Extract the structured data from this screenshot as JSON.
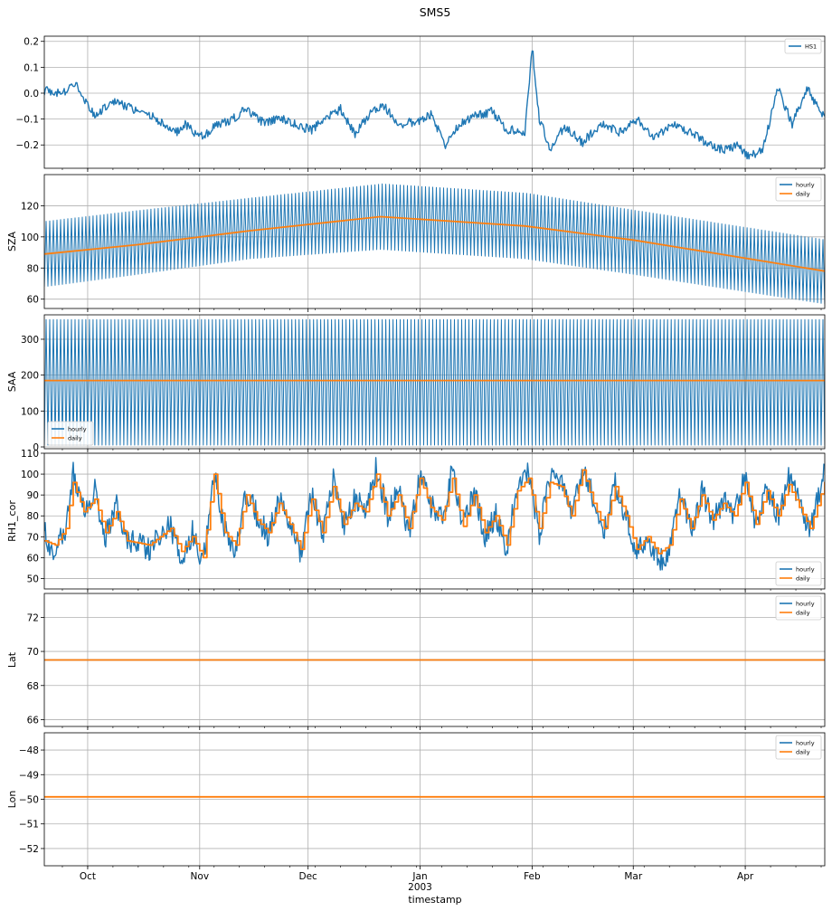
{
  "title": "SMS5",
  "xlabel": "timestamp",
  "x_axis": {
    "range": [
      "2002-09-19",
      "2003-04-23"
    ],
    "month_ticks": [
      {
        "label": "Oct",
        "date": "2002-10-01"
      },
      {
        "label": "Nov",
        "date": "2002-11-01"
      },
      {
        "label": "Dec",
        "date": "2002-12-01"
      },
      {
        "label": "Jan",
        "date": "2003-01-01"
      },
      {
        "label": "Feb",
        "date": "2003-02-01"
      },
      {
        "label": "Mar",
        "date": "2003-03-01"
      },
      {
        "label": "Apr",
        "date": "2003-04-01"
      }
    ],
    "year_label": "2003",
    "minor_ticks": "weekly"
  },
  "colors": {
    "hourly": "#1f77b4",
    "daily": "#ff7f0e",
    "grid": "#b0b0b0"
  },
  "chart_data": [
    {
      "type": "line",
      "ylabel": "",
      "ylim": [
        -0.29,
        0.22
      ],
      "yticks": [
        -0.2,
        -0.1,
        0.0,
        0.1,
        0.2
      ],
      "ytick_labels": [
        "−0.2",
        "−0.1",
        "0.0",
        "0.1",
        "0.2"
      ],
      "grid": true,
      "legend": {
        "placement": "top-right",
        "entries": [
          "HS1"
        ]
      },
      "series": [
        {
          "name": "HS1",
          "color": "#1f77b4",
          "x": [
            "2002-09-19",
            "2002-09-24",
            "2002-09-28",
            "2002-10-03",
            "2002-10-08",
            "2002-10-13",
            "2002-10-18",
            "2002-10-22",
            "2002-10-26",
            "2002-10-28",
            "2002-10-31",
            "2002-11-02",
            "2002-11-05",
            "2002-11-10",
            "2002-11-14",
            "2002-11-18",
            "2002-11-24",
            "2002-11-29",
            "2002-12-02",
            "2002-12-06",
            "2002-12-10",
            "2002-12-14",
            "2002-12-18",
            "2002-12-22",
            "2002-12-26",
            "2002-12-31",
            "2003-01-04",
            "2003-01-08",
            "2003-01-12",
            "2003-01-16",
            "2003-01-21",
            "2003-01-25",
            "2003-01-30",
            "2003-02-01",
            "2003-02-03",
            "2003-02-06",
            "2003-02-10",
            "2003-02-15",
            "2003-02-20",
            "2003-02-25",
            "2003-03-02",
            "2003-03-07",
            "2003-03-12",
            "2003-03-17",
            "2003-03-22",
            "2003-03-26",
            "2003-03-30",
            "2003-04-02",
            "2003-04-06",
            "2003-04-10",
            "2003-04-14",
            "2003-04-18",
            "2003-04-23"
          ],
          "y": [
            0.01,
            0.0,
            0.03,
            -0.09,
            -0.03,
            -0.06,
            -0.08,
            -0.12,
            -0.15,
            -0.12,
            -0.16,
            -0.17,
            -0.13,
            -0.1,
            -0.06,
            -0.11,
            -0.1,
            -0.13,
            -0.14,
            -0.1,
            -0.06,
            -0.16,
            -0.08,
            -0.05,
            -0.12,
            -0.11,
            -0.08,
            -0.2,
            -0.12,
            -0.09,
            -0.07,
            -0.14,
            -0.15,
            0.18,
            -0.1,
            -0.21,
            -0.13,
            -0.19,
            -0.12,
            -0.15,
            -0.1,
            -0.17,
            -0.12,
            -0.15,
            -0.2,
            -0.22,
            -0.2,
            -0.25,
            -0.21,
            0.02,
            -0.12,
            0.02,
            -0.1
          ]
        }
      ]
    },
    {
      "type": "line",
      "ylabel": "SZA",
      "ylim": [
        54,
        140
      ],
      "yticks": [
        60,
        80,
        100,
        120
      ],
      "ytick_labels": [
        "60",
        "80",
        "100",
        "120"
      ],
      "grid": true,
      "legend": {
        "placement": "top-right",
        "entries": [
          "hourly",
          "daily"
        ]
      },
      "series": [
        {
          "name": "hourly",
          "color": "#1f77b4",
          "kind": "diurnal oscillation",
          "x": [
            "2002-09-19",
            "2002-10-15",
            "2002-11-15",
            "2002-12-21",
            "2003-01-30",
            "2003-03-01",
            "2003-04-23"
          ],
          "min": [
            68,
            76,
            86,
            92,
            86,
            76,
            57
          ],
          "max": [
            110,
            117,
            125,
            134,
            128,
            117,
            98
          ]
        },
        {
          "name": "daily",
          "color": "#ff7f0e",
          "x": [
            "2002-09-19",
            "2002-10-15",
            "2002-11-15",
            "2002-12-21",
            "2003-01-30",
            "2003-03-01",
            "2003-04-23"
          ],
          "y": [
            89,
            95,
            104,
            113,
            107,
            98,
            78
          ]
        }
      ]
    },
    {
      "type": "line",
      "ylabel": "SAA",
      "ylim": [
        -5,
        368
      ],
      "yticks": [
        0,
        100,
        200,
        300
      ],
      "ytick_labels": [
        "0",
        "100",
        "200",
        "300"
      ],
      "grid": true,
      "legend": {
        "placement": "bottom-left",
        "entries": [
          "hourly",
          "daily"
        ]
      },
      "series": [
        {
          "name": "hourly",
          "color": "#1f77b4",
          "kind": "diurnal oscillation",
          "x": [
            "2002-09-19",
            "2003-04-23"
          ],
          "min": [
            5,
            5
          ],
          "max": [
            355,
            355
          ]
        },
        {
          "name": "daily",
          "color": "#ff7f0e",
          "x": [
            "2002-09-19",
            "2003-04-23"
          ],
          "y": [
            185,
            185
          ]
        }
      ]
    },
    {
      "type": "line",
      "ylabel": "RH1_cor",
      "ylim": [
        45,
        110
      ],
      "yticks": [
        50,
        60,
        70,
        80,
        90,
        100,
        110
      ],
      "ytick_labels": [
        "50",
        "60",
        "70",
        "80",
        "90",
        "100",
        "110"
      ],
      "grid": true,
      "legend": {
        "placement": "bottom-right",
        "entries": [
          "hourly",
          "daily"
        ]
      },
      "series": [
        {
          "name": "hourly",
          "color": "#1f77b4",
          "x": [
            "2002-09-19",
            "2002-09-22",
            "2002-09-25",
            "2002-09-27",
            "2002-09-30",
            "2002-10-03",
            "2002-10-06",
            "2002-10-09",
            "2002-10-12",
            "2002-10-15",
            "2002-10-18",
            "2002-10-21",
            "2002-10-24",
            "2002-10-27",
            "2002-10-30",
            "2002-11-02",
            "2002-11-05",
            "2002-11-08",
            "2002-11-11",
            "2002-11-14",
            "2002-11-17",
            "2002-11-20",
            "2002-11-23",
            "2002-11-26",
            "2002-11-29",
            "2002-12-02",
            "2002-12-05",
            "2002-12-08",
            "2002-12-11",
            "2002-12-14",
            "2002-12-17",
            "2002-12-20",
            "2002-12-23",
            "2002-12-26",
            "2002-12-29",
            "2003-01-01",
            "2003-01-04",
            "2003-01-07",
            "2003-01-10",
            "2003-01-13",
            "2003-01-16",
            "2003-01-19",
            "2003-01-22",
            "2003-01-25",
            "2003-01-28",
            "2003-01-31",
            "2003-02-03",
            "2003-02-06",
            "2003-02-09",
            "2003-02-12",
            "2003-02-15",
            "2003-02-18",
            "2003-02-21",
            "2003-02-24",
            "2003-02-27",
            "2003-03-02",
            "2003-03-05",
            "2003-03-08",
            "2003-03-11",
            "2003-03-14",
            "2003-03-17",
            "2003-03-20",
            "2003-03-23",
            "2003-03-26",
            "2003-03-29",
            "2003-04-01",
            "2003-04-04",
            "2003-04-07",
            "2003-04-10",
            "2003-04-13",
            "2003-04-16",
            "2003-04-19",
            "2003-04-23"
          ],
          "y": [
            72,
            62,
            75,
            101,
            82,
            92,
            70,
            85,
            66,
            68,
            64,
            70,
            75,
            60,
            72,
            58,
            103,
            72,
            64,
            92,
            80,
            70,
            88,
            76,
            62,
            90,
            71,
            98,
            75,
            88,
            82,
            104,
            80,
            92,
            72,
            100,
            85,
            78,
            102,
            74,
            92,
            70,
            80,
            64,
            95,
            100,
            72,
            98,
            96,
            80,
            104,
            88,
            72,
            96,
            80,
            62,
            70,
            58,
            64,
            90,
            72,
            92,
            78,
            88,
            80,
            100,
            76,
            94,
            80,
            98,
            86,
            72,
            104
          ]
        },
        {
          "name": "daily",
          "color": "#ff7f0e",
          "x": [
            "2002-09-19",
            "2002-09-22",
            "2002-09-25",
            "2002-09-27",
            "2002-09-30",
            "2002-10-03",
            "2002-10-06",
            "2002-10-09",
            "2002-10-12",
            "2002-10-15",
            "2002-10-18",
            "2002-10-21",
            "2002-10-24",
            "2002-10-27",
            "2002-10-30",
            "2002-11-02",
            "2002-11-05",
            "2002-11-08",
            "2002-11-11",
            "2002-11-14",
            "2002-11-17",
            "2002-11-20",
            "2002-11-23",
            "2002-11-26",
            "2002-11-29",
            "2002-12-02",
            "2002-12-05",
            "2002-12-08",
            "2002-12-11",
            "2002-12-14",
            "2002-12-17",
            "2002-12-20",
            "2002-12-23",
            "2002-12-26",
            "2002-12-29",
            "2003-01-01",
            "2003-01-04",
            "2003-01-07",
            "2003-01-10",
            "2003-01-13",
            "2003-01-16",
            "2003-01-19",
            "2003-01-22",
            "2003-01-25",
            "2003-01-28",
            "2003-01-31",
            "2003-02-03",
            "2003-02-06",
            "2003-02-09",
            "2003-02-12",
            "2003-02-15",
            "2003-02-18",
            "2003-02-21",
            "2003-02-24",
            "2003-02-27",
            "2003-03-02",
            "2003-03-05",
            "2003-03-08",
            "2003-03-11",
            "2003-03-14",
            "2003-03-17",
            "2003-03-20",
            "2003-03-23",
            "2003-03-26",
            "2003-03-29",
            "2003-04-01",
            "2003-04-04",
            "2003-04-07",
            "2003-04-10",
            "2003-04-13",
            "2003-04-16",
            "2003-04-19",
            "2003-04-23"
          ],
          "y": [
            68,
            66,
            74,
            96,
            82,
            88,
            72,
            82,
            68,
            67,
            66,
            70,
            74,
            63,
            70,
            60,
            100,
            72,
            66,
            90,
            78,
            72,
            86,
            76,
            64,
            88,
            72,
            94,
            76,
            86,
            82,
            100,
            80,
            90,
            74,
            98,
            84,
            78,
            98,
            75,
            90,
            72,
            80,
            66,
            92,
            98,
            74,
            96,
            94,
            80,
            102,
            86,
            74,
            94,
            80,
            64,
            70,
            62,
            66,
            88,
            74,
            90,
            78,
            86,
            80,
            96,
            76,
            92,
            80,
            95,
            84,
            74,
            96
          ]
        }
      ]
    },
    {
      "type": "line",
      "ylabel": "Lat",
      "ylim": [
        65.6,
        73.4
      ],
      "yticks": [
        66,
        68,
        70,
        72
      ],
      "ytick_labels": [
        "66",
        "68",
        "70",
        "72"
      ],
      "grid": true,
      "legend": {
        "placement": "top-right",
        "entries": [
          "hourly",
          "daily"
        ]
      },
      "series": [
        {
          "name": "hourly",
          "color": "#1f77b4",
          "x": [
            "2002-09-19",
            "2003-04-23"
          ],
          "y": [
            69.5,
            69.5
          ]
        },
        {
          "name": "daily",
          "color": "#ff7f0e",
          "x": [
            "2002-09-19",
            "2003-04-23"
          ],
          "y": [
            69.5,
            69.5
          ]
        }
      ]
    },
    {
      "type": "line",
      "ylabel": "Lon",
      "ylim": [
        -52.7,
        -47.3
      ],
      "yticks": [
        -52,
        -51,
        -50,
        -49,
        -48
      ],
      "ytick_labels": [
        "−52",
        "−51",
        "−50",
        "−49",
        "−48"
      ],
      "grid": true,
      "legend": {
        "placement": "top-right",
        "entries": [
          "hourly",
          "daily"
        ]
      },
      "series": [
        {
          "name": "hourly",
          "color": "#1f77b4",
          "x": [
            "2002-09-19",
            "2003-04-23"
          ],
          "y": [
            -49.9,
            -49.9
          ]
        },
        {
          "name": "daily",
          "color": "#ff7f0e",
          "x": [
            "2002-09-19",
            "2003-04-23"
          ],
          "y": [
            -49.9,
            -49.9
          ]
        }
      ]
    }
  ]
}
